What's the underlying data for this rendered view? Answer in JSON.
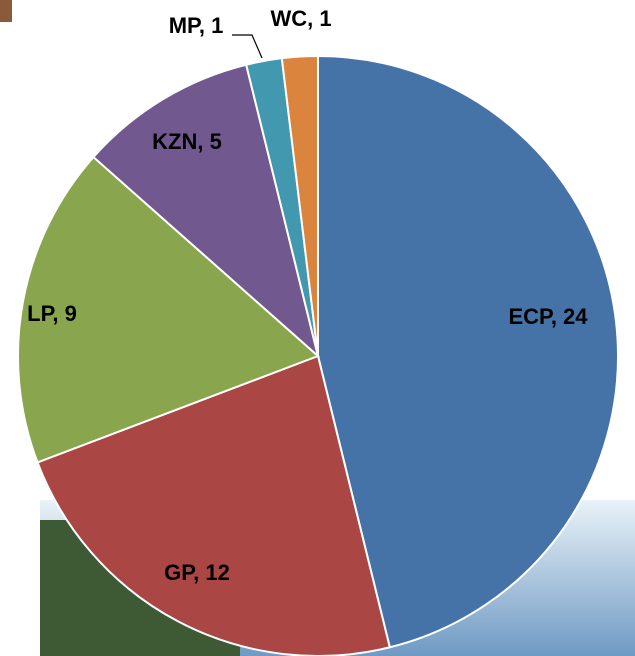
{
  "chart_data": {
    "type": "pie",
    "values": [
      24,
      12,
      9,
      5,
      1,
      1
    ],
    "value_labels": [
      "ECP, 24",
      "GP, 12",
      "LP, 9",
      "KZN, 5",
      "MP, 1",
      "WC, 1"
    ],
    "colors": [
      "#4572a7",
      "#aa4643",
      "#89a54e",
      "#71588f",
      "#4198af",
      "#db843d"
    ]
  }
}
